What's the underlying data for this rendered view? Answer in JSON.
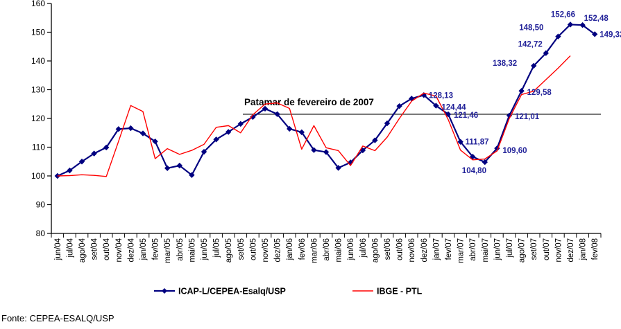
{
  "page": {
    "background": "#FFFFFF",
    "source_note": "Fonte: CEPEA-ESALQ/USP"
  },
  "chart_data": {
    "type": "line",
    "title": "",
    "xlabel": "",
    "ylabel": "",
    "ylim": [
      80,
      160
    ],
    "ytick_step": 10,
    "grid": false,
    "legend_position": "bottom-center",
    "axis_color": "#000000",
    "label_color": "#222299",
    "categories": [
      "jun/04",
      "jul/04",
      "ago/04",
      "set/04",
      "out/04",
      "nov/04",
      "dez/04",
      "jan/05",
      "fev/05",
      "mar/05",
      "abr/05",
      "mai/05",
      "jun/05",
      "jul/05",
      "ago/05",
      "set/05",
      "out/05",
      "nov/05",
      "dez/05",
      "jan/06",
      "fev/06",
      "mar/06",
      "abr/06",
      "mai/06",
      "jun/06",
      "jul/06",
      "ago/06",
      "set/06",
      "out/06",
      "nov/06",
      "dez/06",
      "jan/07",
      "fev/07",
      "mar/07",
      "abr/07",
      "mai/07",
      "jun/07",
      "jul/07",
      "ago/07",
      "set/07",
      "out/07",
      "nov/07",
      "dez/07",
      "jan/08",
      "fev/08"
    ],
    "series": [
      {
        "name": "ICAP-L/CEPEA-Esalq/USP",
        "color": "#000080",
        "marker": "diamond",
        "values": [
          100.0,
          101.9,
          105.0,
          107.8,
          109.9,
          116.3,
          116.6,
          114.8,
          112.0,
          102.7,
          103.6,
          100.3,
          108.4,
          112.7,
          115.3,
          118.1,
          120.5,
          123.4,
          121.5,
          116.4,
          115.2,
          109.0,
          108.3,
          102.8,
          104.7,
          108.9,
          112.4,
          118.3,
          124.3,
          126.9,
          128.13,
          124.44,
          121.46,
          111.87,
          106.7,
          104.8,
          109.6,
          121.01,
          129.58,
          138.32,
          142.72,
          148.5,
          152.66,
          152.48,
          149.32
        ]
      },
      {
        "name": "IBGE - PTL",
        "color": "#FF0000",
        "marker": "none",
        "values": [
          100.0,
          100.1,
          100.4,
          100.2,
          99.8,
          112.0,
          124.5,
          122.4,
          106.0,
          109.5,
          107.5,
          108.9,
          111.0,
          116.9,
          117.5,
          115.0,
          121.3,
          125.0,
          125.4,
          123.5,
          109.3,
          117.5,
          109.8,
          108.8,
          103.6,
          110.4,
          108.8,
          113.5,
          120.0,
          126.0,
          128.8,
          127.8,
          119.6,
          109.0,
          105.6,
          105.9,
          108.7,
          120.0,
          128.3,
          129.5,
          133.5,
          137.5,
          141.8,
          null,
          null
        ]
      }
    ],
    "reference_line": {
      "value": 121.46,
      "label": "Patamar de fevereiro de 2007",
      "color": "#000000"
    },
    "point_labels": [
      {
        "series": 0,
        "index": 30,
        "text": "128,13"
      },
      {
        "series": 0,
        "index": 31,
        "text": "124,44"
      },
      {
        "series": 0,
        "index": 32,
        "text": "121,46"
      },
      {
        "series": 0,
        "index": 33,
        "text": "111,87"
      },
      {
        "series": 0,
        "index": 35,
        "text": "104,80"
      },
      {
        "series": 0,
        "index": 36,
        "text": "109,60"
      },
      {
        "series": 0,
        "index": 37,
        "text": "121,01"
      },
      {
        "series": 0,
        "index": 38,
        "text": "129,58"
      },
      {
        "series": 0,
        "index": 39,
        "text": "138,32"
      },
      {
        "series": 0,
        "index": 40,
        "text": "142,72"
      },
      {
        "series": 0,
        "index": 41,
        "text": "148,50"
      },
      {
        "series": 0,
        "index": 42,
        "text": "152,66"
      },
      {
        "series": 0,
        "index": 43,
        "text": "152,48"
      },
      {
        "series": 0,
        "index": 44,
        "text": "149,32"
      }
    ]
  }
}
